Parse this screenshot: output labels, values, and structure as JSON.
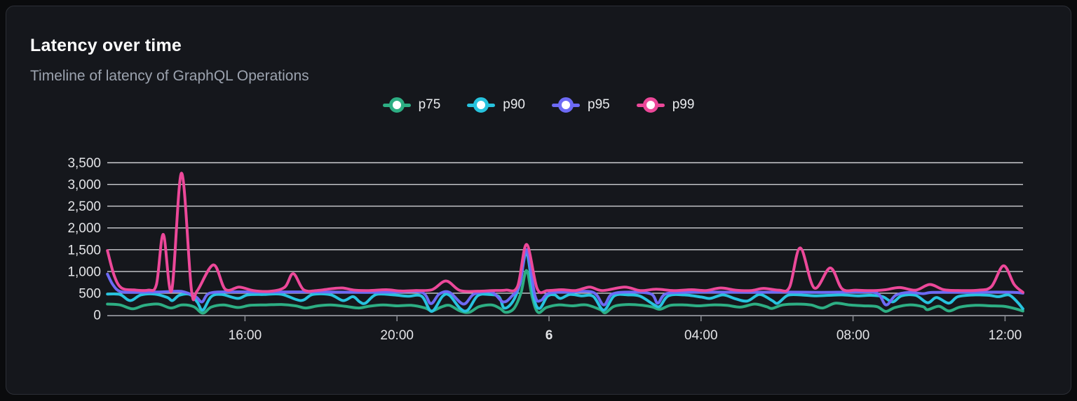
{
  "header": {
    "title": "Latency over time",
    "subtitle": "Timeline of latency of GraphQL Operations"
  },
  "legend": {
    "items": [
      {
        "label": "p75",
        "color": "#2dae83"
      },
      {
        "label": "p90",
        "color": "#27c3de"
      },
      {
        "label": "p95",
        "color": "#6d6af5"
      },
      {
        "label": "p99",
        "color": "#ec4899"
      }
    ]
  },
  "colors": {
    "card_bg": "#15171c",
    "card_border": "#2c2f36",
    "page_bg": "#0a0b0d",
    "gridline": "#cfd0d4",
    "axis": "#84868d",
    "title_text": "#ffffff",
    "subtitle_text": "#9ca3af",
    "tick_text": "#e3e4e7"
  },
  "chart_data": {
    "type": "line",
    "title": "Latency over time",
    "subtitle": "Timeline of latency of GraphQL Operations",
    "grid": "horizontal",
    "legend_position": "top-center",
    "ylim": [
      0,
      3500
    ],
    "x_domain_hours": [
      12.38,
      36.47
    ],
    "y_ticks": [
      {
        "value": 0,
        "label": "0"
      },
      {
        "value": 500,
        "label": "500"
      },
      {
        "value": 1000,
        "label": "1,000"
      },
      {
        "value": 1500,
        "label": "1,500"
      },
      {
        "value": 2000,
        "label": "2,000"
      },
      {
        "value": 2500,
        "label": "2,500"
      },
      {
        "value": 3000,
        "label": "3,000"
      },
      {
        "value": 3500,
        "label": "3,500"
      }
    ],
    "x_ticks": [
      {
        "hour": 16,
        "label": "16:00",
        "bold": false
      },
      {
        "hour": 20,
        "label": "20:00",
        "bold": false
      },
      {
        "hour": 24,
        "label": "6",
        "bold": true
      },
      {
        "hour": 28,
        "label": "04:00",
        "bold": false
      },
      {
        "hour": 32,
        "label": "08:00",
        "bold": false
      },
      {
        "hour": 36,
        "label": "12:00",
        "bold": false
      }
    ],
    "series": [
      {
        "name": "p75",
        "color": "#2dae83",
        "points": [
          [
            12.38,
            250
          ],
          [
            12.71,
            230
          ],
          [
            13.04,
            140
          ],
          [
            13.35,
            220
          ],
          [
            13.72,
            250
          ],
          [
            14.05,
            160
          ],
          [
            14.33,
            230
          ],
          [
            14.65,
            190
          ],
          [
            14.89,
            40
          ],
          [
            15.11,
            180
          ],
          [
            15.44,
            230
          ],
          [
            15.81,
            170
          ],
          [
            16.13,
            220
          ],
          [
            16.55,
            230
          ],
          [
            16.96,
            240
          ],
          [
            17.33,
            210
          ],
          [
            17.6,
            160
          ],
          [
            17.92,
            210
          ],
          [
            18.25,
            230
          ],
          [
            18.62,
            200
          ],
          [
            18.99,
            160
          ],
          [
            19.26,
            200
          ],
          [
            19.63,
            230
          ],
          [
            20.0,
            210
          ],
          [
            20.37,
            220
          ],
          [
            20.74,
            160
          ],
          [
            20.92,
            90
          ],
          [
            21.16,
            180
          ],
          [
            21.38,
            220
          ],
          [
            21.66,
            90
          ],
          [
            21.9,
            60
          ],
          [
            22.16,
            190
          ],
          [
            22.49,
            230
          ],
          [
            22.71,
            150
          ],
          [
            22.86,
            60
          ],
          [
            23.08,
            150
          ],
          [
            23.26,
            500
          ],
          [
            23.41,
            1020
          ],
          [
            23.56,
            400
          ],
          [
            23.71,
            60
          ],
          [
            23.93,
            170
          ],
          [
            24.24,
            230
          ],
          [
            24.61,
            210
          ],
          [
            24.98,
            230
          ],
          [
            25.35,
            120
          ],
          [
            25.48,
            50
          ],
          [
            25.72,
            200
          ],
          [
            26.09,
            240
          ],
          [
            26.46,
            220
          ],
          [
            26.73,
            180
          ],
          [
            26.92,
            130
          ],
          [
            27.19,
            220
          ],
          [
            27.56,
            230
          ],
          [
            27.93,
            210
          ],
          [
            28.3,
            230
          ],
          [
            28.67,
            220
          ],
          [
            29.04,
            180
          ],
          [
            29.41,
            250
          ],
          [
            29.72,
            190
          ],
          [
            29.87,
            150
          ],
          [
            30.15,
            230
          ],
          [
            30.52,
            250
          ],
          [
            30.89,
            230
          ],
          [
            31.2,
            160
          ],
          [
            31.53,
            270
          ],
          [
            31.9,
            230
          ],
          [
            32.27,
            210
          ],
          [
            32.63,
            190
          ],
          [
            32.86,
            80
          ],
          [
            33.1,
            170
          ],
          [
            33.47,
            230
          ],
          [
            33.84,
            190
          ],
          [
            33.96,
            120
          ],
          [
            34.26,
            200
          ],
          [
            34.52,
            90
          ],
          [
            34.81,
            180
          ],
          [
            35.22,
            220
          ],
          [
            35.59,
            210
          ],
          [
            35.96,
            200
          ],
          [
            36.24,
            150
          ],
          [
            36.47,
            90
          ]
        ]
      },
      {
        "name": "p90",
        "color": "#27c3de",
        "points": [
          [
            12.38,
            480
          ],
          [
            12.71,
            470
          ],
          [
            12.98,
            330
          ],
          [
            13.26,
            460
          ],
          [
            13.63,
            480
          ],
          [
            13.96,
            400
          ],
          [
            14.09,
            330
          ],
          [
            14.27,
            450
          ],
          [
            14.55,
            470
          ],
          [
            14.74,
            300
          ],
          [
            14.89,
            110
          ],
          [
            15.11,
            420
          ],
          [
            15.39,
            470
          ],
          [
            15.81,
            380
          ],
          [
            16.07,
            460
          ],
          [
            16.5,
            470
          ],
          [
            16.96,
            475
          ],
          [
            17.47,
            330
          ],
          [
            17.78,
            470
          ],
          [
            18.25,
            465
          ],
          [
            18.58,
            330
          ],
          [
            18.84,
            420
          ],
          [
            19.02,
            300
          ],
          [
            19.17,
            270
          ],
          [
            19.45,
            470
          ],
          [
            19.91,
            460
          ],
          [
            20.28,
            430
          ],
          [
            20.65,
            430
          ],
          [
            20.91,
            80
          ],
          [
            21.2,
            430
          ],
          [
            21.38,
            450
          ],
          [
            21.66,
            150
          ],
          [
            21.86,
            110
          ],
          [
            22.12,
            440
          ],
          [
            22.4,
            470
          ],
          [
            22.68,
            420
          ],
          [
            22.82,
            160
          ],
          [
            23.04,
            300
          ],
          [
            23.23,
            700
          ],
          [
            23.41,
            1430
          ],
          [
            23.6,
            400
          ],
          [
            23.75,
            150
          ],
          [
            23.96,
            430
          ],
          [
            24.15,
            460
          ],
          [
            24.3,
            380
          ],
          [
            24.55,
            470
          ],
          [
            24.85,
            440
          ],
          [
            25.16,
            430
          ],
          [
            25.44,
            110
          ],
          [
            25.72,
            440
          ],
          [
            26.09,
            460
          ],
          [
            26.4,
            430
          ],
          [
            26.77,
            230
          ],
          [
            26.92,
            200
          ],
          [
            27.14,
            440
          ],
          [
            27.56,
            460
          ],
          [
            28.02,
            410
          ],
          [
            28.24,
            380
          ],
          [
            28.58,
            460
          ],
          [
            28.91,
            370
          ],
          [
            29.22,
            320
          ],
          [
            29.54,
            470
          ],
          [
            29.87,
            330
          ],
          [
            30.02,
            270
          ],
          [
            30.28,
            450
          ],
          [
            30.61,
            460
          ],
          [
            30.98,
            440
          ],
          [
            31.35,
            450
          ],
          [
            31.71,
            460
          ],
          [
            32.12,
            440
          ],
          [
            32.45,
            450
          ],
          [
            32.78,
            420
          ],
          [
            33.04,
            300
          ],
          [
            33.28,
            440
          ],
          [
            33.65,
            450
          ],
          [
            33.96,
            280
          ],
          [
            34.2,
            400
          ],
          [
            34.52,
            270
          ],
          [
            34.76,
            420
          ],
          [
            35.22,
            460
          ],
          [
            35.59,
            450
          ],
          [
            35.83,
            420
          ],
          [
            36.1,
            460
          ],
          [
            36.32,
            300
          ],
          [
            36.47,
            140
          ]
        ]
      },
      {
        "name": "p95",
        "color": "#6d6af5",
        "points": [
          [
            12.38,
            940
          ],
          [
            12.52,
            700
          ],
          [
            12.71,
            540
          ],
          [
            13.08,
            520
          ],
          [
            13.82,
            530
          ],
          [
            14.33,
            540
          ],
          [
            14.7,
            420
          ],
          [
            14.87,
            300
          ],
          [
            15.07,
            500
          ],
          [
            15.66,
            530
          ],
          [
            16.59,
            525
          ],
          [
            17.51,
            530
          ],
          [
            18.43,
            525
          ],
          [
            19.17,
            520
          ],
          [
            19.91,
            525
          ],
          [
            20.65,
            520
          ],
          [
            20.89,
            260
          ],
          [
            21.11,
            480
          ],
          [
            21.38,
            520
          ],
          [
            21.75,
            250
          ],
          [
            22.03,
            480
          ],
          [
            22.49,
            525
          ],
          [
            22.79,
            300
          ],
          [
            23.01,
            420
          ],
          [
            23.23,
            700
          ],
          [
            23.41,
            1500
          ],
          [
            23.63,
            450
          ],
          [
            23.78,
            330
          ],
          [
            24.0,
            500
          ],
          [
            24.52,
            525
          ],
          [
            25.16,
            520
          ],
          [
            25.44,
            230
          ],
          [
            25.66,
            480
          ],
          [
            26.18,
            525
          ],
          [
            26.69,
            480
          ],
          [
            26.86,
            270
          ],
          [
            27.06,
            480
          ],
          [
            27.56,
            520
          ],
          [
            28.39,
            525
          ],
          [
            29.31,
            520
          ],
          [
            30.24,
            525
          ],
          [
            31.16,
            520
          ],
          [
            32.08,
            525
          ],
          [
            32.63,
            500
          ],
          [
            32.87,
            230
          ],
          [
            33.12,
            450
          ],
          [
            33.47,
            520
          ],
          [
            33.84,
            490
          ],
          [
            34.11,
            520
          ],
          [
            35.04,
            520
          ],
          [
            35.78,
            525
          ],
          [
            36.24,
            520
          ],
          [
            36.47,
            500
          ]
        ]
      },
      {
        "name": "p99",
        "color": "#ec4899",
        "points": [
          [
            12.38,
            1480
          ],
          [
            12.56,
            900
          ],
          [
            12.75,
            620
          ],
          [
            13.08,
            575
          ],
          [
            13.45,
            570
          ],
          [
            13.67,
            700
          ],
          [
            13.85,
            1850
          ],
          [
            14.07,
            560
          ],
          [
            14.33,
            3260
          ],
          [
            14.59,
            580
          ],
          [
            14.74,
            550
          ],
          [
            15.17,
            1150
          ],
          [
            15.48,
            590
          ],
          [
            15.85,
            640
          ],
          [
            16.22,
            560
          ],
          [
            16.68,
            545
          ],
          [
            17.05,
            640
          ],
          [
            17.27,
            950
          ],
          [
            17.54,
            580
          ],
          [
            17.88,
            560
          ],
          [
            18.25,
            600
          ],
          [
            18.56,
            620
          ],
          [
            18.89,
            570
          ],
          [
            19.26,
            560
          ],
          [
            19.72,
            580
          ],
          [
            20.09,
            550
          ],
          [
            20.46,
            560
          ],
          [
            20.92,
            580
          ],
          [
            21.29,
            780
          ],
          [
            21.66,
            560
          ],
          [
            22.12,
            545
          ],
          [
            22.49,
            560
          ],
          [
            22.86,
            570
          ],
          [
            23.17,
            650
          ],
          [
            23.41,
            1620
          ],
          [
            23.69,
            600
          ],
          [
            23.96,
            560
          ],
          [
            24.33,
            580
          ],
          [
            24.7,
            560
          ],
          [
            25.07,
            640
          ],
          [
            25.4,
            560
          ],
          [
            25.99,
            640
          ],
          [
            26.4,
            560
          ],
          [
            26.82,
            590
          ],
          [
            27.28,
            560
          ],
          [
            27.75,
            580
          ],
          [
            28.12,
            560
          ],
          [
            28.52,
            620
          ],
          [
            28.91,
            570
          ],
          [
            29.31,
            560
          ],
          [
            29.65,
            610
          ],
          [
            30.05,
            570
          ],
          [
            30.33,
            640
          ],
          [
            30.61,
            1540
          ],
          [
            30.98,
            620
          ],
          [
            31.4,
            1080
          ],
          [
            31.71,
            600
          ],
          [
            32.08,
            570
          ],
          [
            32.54,
            560
          ],
          [
            32.86,
            580
          ],
          [
            33.23,
            630
          ],
          [
            33.65,
            570
          ],
          [
            34.02,
            700
          ],
          [
            34.39,
            580
          ],
          [
            34.85,
            560
          ],
          [
            35.31,
            570
          ],
          [
            35.64,
            650
          ],
          [
            35.96,
            1130
          ],
          [
            36.24,
            700
          ],
          [
            36.47,
            520
          ]
        ]
      }
    ]
  }
}
